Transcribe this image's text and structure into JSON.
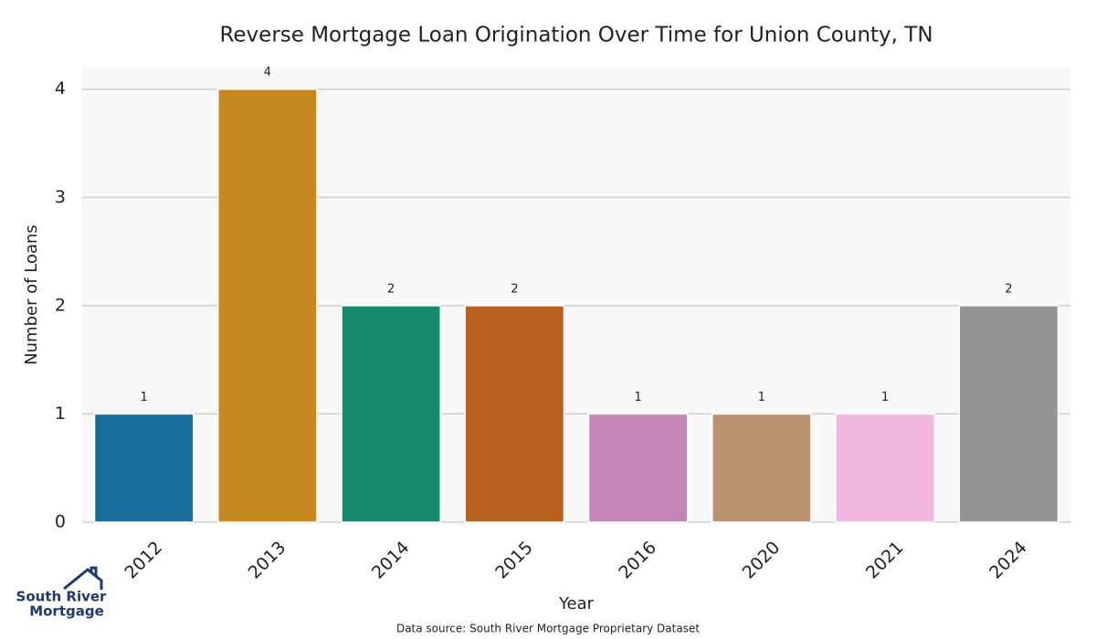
{
  "chart_data": {
    "type": "bar",
    "title": "Reverse Mortgage Loan Origination Over Time for Union County, TN",
    "x_label": "Year",
    "y_label": "Number of Loans",
    "source": "Data source: South River Mortgage Proprietary Dataset",
    "categories": [
      "2012",
      "2013",
      "2014",
      "2015",
      "2016",
      "2020",
      "2021",
      "2024"
    ],
    "values": [
      1,
      4,
      2,
      2,
      1,
      1,
      1,
      2
    ],
    "colors": [
      "#176d9c",
      "#c4881f",
      "#168b6b",
      "#b8601d",
      "#c384b6",
      "#bb9270",
      "#f0b8de",
      "#949494"
    ],
    "ylim": [
      0,
      4.2
    ],
    "yticks": [
      0,
      1,
      2,
      3,
      4
    ],
    "grid": true
  },
  "logo": {
    "lines": [
      "South River",
      "Mortgage"
    ]
  }
}
